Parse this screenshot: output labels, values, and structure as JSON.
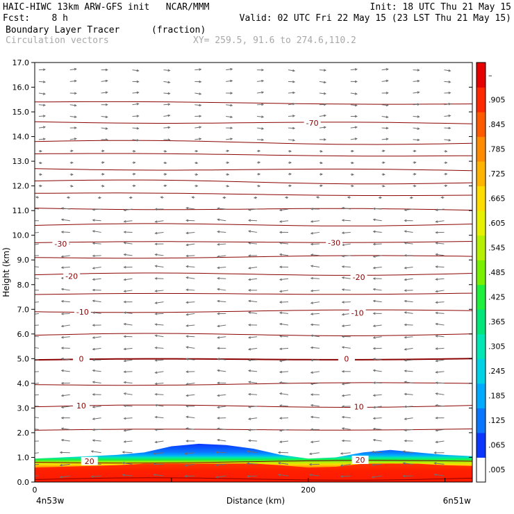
{
  "header": {
    "line1_left": "HAIC-HIWC 13km ARW-GFS init   NCAR/MMM",
    "line1_right": "Init: 18 UTC Thu 21 May 15",
    "line2_left": "Fcst:    8 h",
    "line2_right": "Valid: 02 UTC Fri 22 May 15 (23 LST Thu 21 May 15)",
    "line3_left": "Boundary Layer Tracer",
    "line3_mid": "(fraction)",
    "line4_left": "Circulation vectors",
    "line4_mid": "XY= 259.5, 91.6 to 274.6,110.2"
  },
  "chart_data": {
    "type": "heatmap",
    "xlabel": "Distance (km)",
    "ylabel": "Height (km)",
    "ylim": [
      0,
      17
    ],
    "xlim": [
      0,
      320
    ],
    "x_ticks": [
      {
        "v": 0,
        "label": "0"
      },
      {
        "v": 200,
        "label": "200"
      }
    ],
    "x_end_labels": [
      "4n53w",
      "6n51w"
    ],
    "y_ticks": [
      "0.0",
      "1.0",
      "2.0",
      "3.0",
      "4.0",
      "5.0",
      "6.0",
      "7.0",
      "8.0",
      "9.0",
      "10.0",
      "11.0",
      "12.0",
      "13.0",
      "14.0",
      "15.0",
      "16.0",
      "17.0"
    ],
    "colorbar": {
      "labels": [
        ".005",
        ".065",
        ".125",
        ".185",
        ".245",
        ".305",
        ".365",
        ".425",
        ".485",
        ".545",
        ".605",
        ".665",
        ".725",
        ".785",
        ".845",
        ".905",
        "–"
      ],
      "colors": [
        "#ffffff",
        "#0a36ff",
        "#0a76ff",
        "#00aaff",
        "#00d2e6",
        "#00e6b4",
        "#00e67a",
        "#1ef03c",
        "#78f000",
        "#b4f000",
        "#e6f000",
        "#ffdc00",
        "#ffb400",
        "#ff8c00",
        "#ff5a00",
        "#ff2800",
        "#e60000"
      ]
    },
    "contour_color": "#8b0000",
    "contours_km": [
      0.1,
      0.8,
      2.1,
      3.05,
      3.95,
      4.95,
      5.95,
      6.9,
      7.6,
      8.4,
      9.1,
      9.7,
      10.4,
      11.1,
      11.7,
      12.2,
      12.7,
      13.3,
      13.8,
      14.6,
      15.4
    ],
    "contour_labels": [
      {
        "text": "20",
        "x": 40,
        "y": 0.85
      },
      {
        "text": "20",
        "x": 238,
        "y": 0.9
      },
      {
        "text": "10",
        "x": 34,
        "y": 3.1
      },
      {
        "text": "10",
        "x": 237,
        "y": 3.05
      },
      {
        "text": "0",
        "x": 34,
        "y": 5.0
      },
      {
        "text": "0",
        "x": 228,
        "y": 5.0
      },
      {
        "text": "-10",
        "x": 35,
        "y": 6.9
      },
      {
        "text": "-10",
        "x": 236,
        "y": 6.85
      },
      {
        "text": "-20",
        "x": 27,
        "y": 8.35
      },
      {
        "text": "-20",
        "x": 237,
        "y": 8.3
      },
      {
        "text": "-30",
        "x": 19,
        "y": 9.65
      },
      {
        "text": "-30",
        "x": 219,
        "y": 9.7
      },
      {
        "text": "-70",
        "x": 203,
        "y": 14.55
      }
    ],
    "pbl_top_km": [
      [
        0,
        0.95
      ],
      [
        20,
        1.0
      ],
      [
        40,
        1.05
      ],
      [
        60,
        1.1
      ],
      [
        80,
        1.2
      ],
      [
        100,
        1.45
      ],
      [
        120,
        1.55
      ],
      [
        140,
        1.5
      ],
      [
        160,
        1.35
      ],
      [
        180,
        1.1
      ],
      [
        200,
        0.95
      ],
      [
        220,
        1.0
      ],
      [
        240,
        1.2
      ],
      [
        260,
        1.3
      ],
      [
        280,
        1.2
      ],
      [
        300,
        1.1
      ],
      [
        320,
        1.05
      ]
    ],
    "vectors": "circulation vectors (gray arrows), westward in lower-middle troposphere, eastward aloft"
  }
}
